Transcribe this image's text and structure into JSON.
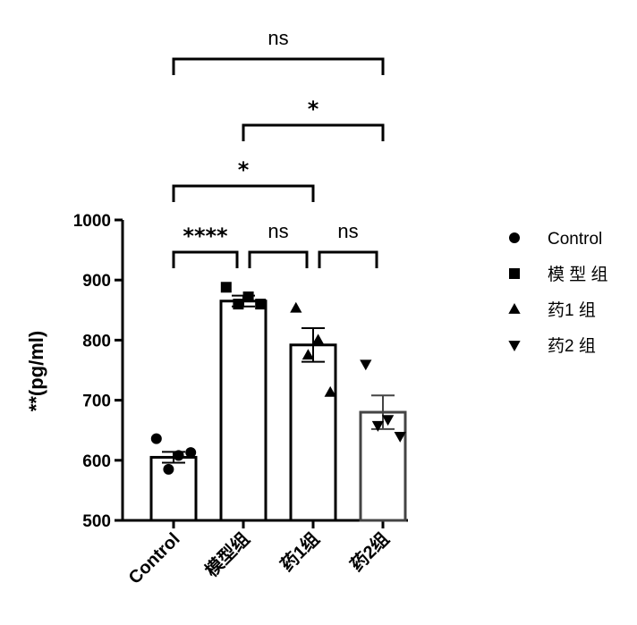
{
  "chart_data": {
    "type": "bar",
    "categories": [
      "Control",
      "模型组",
      "药1组",
      "药2组"
    ],
    "legend_labels": [
      "Control",
      "模 型 组",
      "药1 组",
      "药2 组"
    ],
    "ylabel": "**(pg/ml)",
    "xlabel": "",
    "ylim": [
      500,
      1000
    ],
    "yticks": [
      500,
      600,
      700,
      800,
      900,
      1000
    ],
    "legend_position": "right",
    "series": [
      {
        "name": "Control",
        "marker": "circle",
        "mean": 605,
        "sem": 9,
        "points": [
          636,
          608,
          585,
          613
        ]
      },
      {
        "name": "模型组",
        "marker": "square",
        "mean": 865,
        "sem": 9,
        "points": [
          888,
          872,
          860,
          860
        ]
      },
      {
        "name": "药1组",
        "marker": "triangle-up",
        "mean": 792,
        "sem": 28,
        "points": [
          853,
          800,
          775,
          713
        ]
      },
      {
        "name": "药2组",
        "marker": "triangle-down",
        "mean": 680,
        "sem": 28,
        "points": [
          760,
          668,
          658,
          640
        ]
      }
    ],
    "comparisons": [
      {
        "from": 0,
        "to": 1,
        "label": "****"
      },
      {
        "from": 1,
        "to": 2,
        "label": "ns"
      },
      {
        "from": 2,
        "to": 3,
        "label": "ns"
      },
      {
        "from": 0,
        "to": 2,
        "label": "*"
      },
      {
        "from": 1,
        "to": 3,
        "label": "*"
      },
      {
        "from": 0,
        "to": 3,
        "label": "ns"
      }
    ]
  }
}
